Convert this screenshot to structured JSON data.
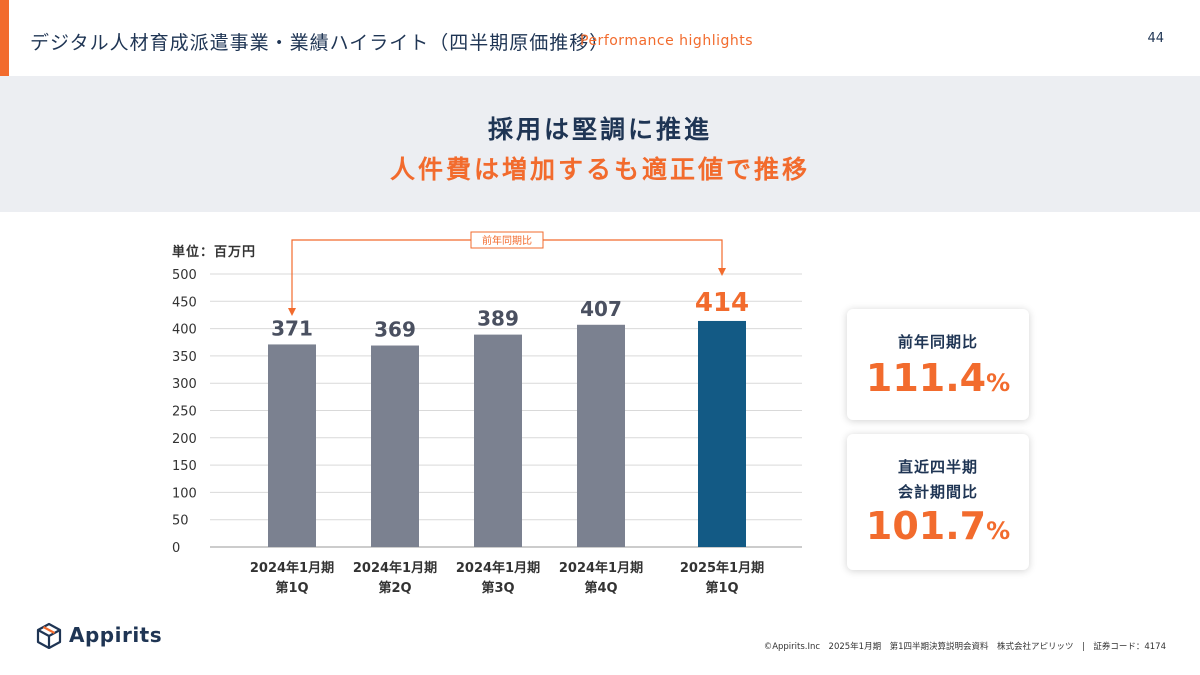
{
  "header": {
    "title": "デジタル人材育成派遣事業・業績ハイライト（四半期原価推移）",
    "subtitle": "Performance highlights",
    "page_number": "44"
  },
  "banner": {
    "line1": "採用は堅調に推進",
    "line2": "人件費は増加するも適正値で推移"
  },
  "chart_data": {
    "type": "bar",
    "unit_label": "単位：百万円",
    "categories": [
      [
        "2024年1月期",
        "第1Q"
      ],
      [
        "2024年1月期",
        "第2Q"
      ],
      [
        "2024年1月期",
        "第3Q"
      ],
      [
        "2024年1月期",
        "第4Q"
      ],
      [
        "2025年1月期",
        "第1Q"
      ]
    ],
    "values": [
      371,
      369,
      389,
      407,
      414
    ],
    "highlight_index": 4,
    "ylim": [
      0,
      500
    ],
    "yticks": [
      0,
      50,
      100,
      150,
      200,
      250,
      300,
      350,
      400,
      450,
      500
    ],
    "grid": true,
    "annotation": "前年同期比",
    "colors": {
      "bar": "#7b8190",
      "highlight_bar": "#135a85",
      "label": "#4a5060",
      "highlight_label": "#f26b2d",
      "accent": "#f26b2d"
    }
  },
  "cards": [
    {
      "label_lines": [
        "前年同期比"
      ],
      "value": "111.4",
      "unit": "%"
    },
    {
      "label_lines": [
        "直近四半期",
        "会計期間比"
      ],
      "value": "101.7",
      "unit": "%"
    }
  ],
  "logo": {
    "text": "Appirits",
    "icon": "box-icon"
  },
  "footer": {
    "text": "©Appirits.Inc　2025年1月期　第1四半期決算説明会資料　株式会社アピリッツ　|　証券コード：4174"
  }
}
